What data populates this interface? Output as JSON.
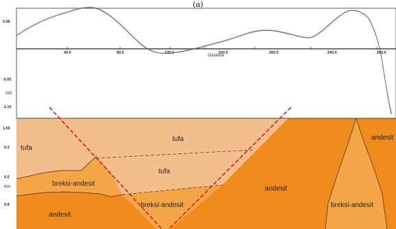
{
  "figure": {
    "label": "(a)"
  },
  "profile": {
    "ylabel": "mG",
    "xlabel": "Distance",
    "xticks": [
      "40.0",
      "80.0",
      "120.0",
      "160.0",
      "200.0",
      "240.0",
      "280.0"
    ],
    "yticks": [
      "0.55",
      "-0.55",
      "-1.10"
    ]
  },
  "section": {
    "ylabel": "Km",
    "depth_ticks": [
      "1.65",
      "0.3",
      "0.5",
      "0.8"
    ],
    "units": [
      {
        "id": "tufa-left",
        "label": "tufa"
      },
      {
        "id": "tufa-upper",
        "label": "tufa"
      },
      {
        "id": "tufa-middle",
        "label": "tufa"
      },
      {
        "id": "breksi-andesit-left",
        "label": "breksi-andesit"
      },
      {
        "id": "breksi-andesit-center",
        "label": "breksi-andesit"
      },
      {
        "id": "andesit-left",
        "label": "andesit"
      },
      {
        "id": "andesit-center",
        "label": "andesit"
      },
      {
        "id": "andesit-right",
        "label": "andesit"
      },
      {
        "id": "breksi-andesit-right",
        "label": "breksi-andesit"
      }
    ],
    "colors": {
      "tufa": "#f4bd8c",
      "breksi_andesit": "#f4a646",
      "andesit": "#f08a1d",
      "fault": "#cc1f24"
    }
  }
}
